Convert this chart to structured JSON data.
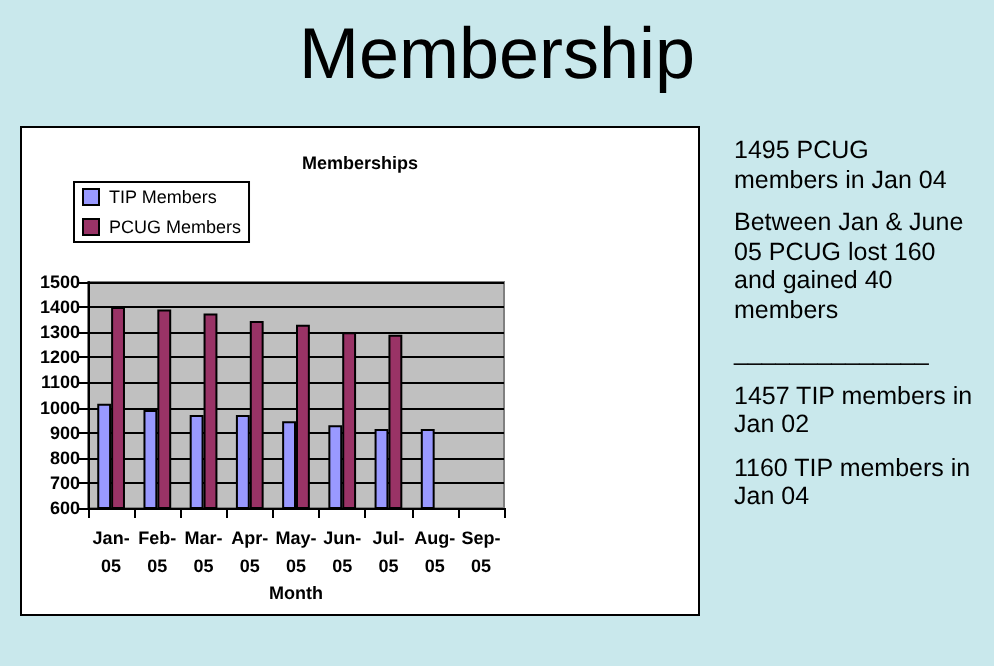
{
  "chart_data": {
    "type": "bar",
    "title": "Membership",
    "subtitle": "Memberships",
    "xlabel": "Month",
    "categories": [
      "Jan-05",
      "Feb-05",
      "Mar-05",
      "Apr-05",
      "May-05",
      "Jun-05",
      "Jul-05",
      "Aug-05",
      "Sep-05"
    ],
    "series": [
      {
        "name": "TIP Members",
        "color": "#9999ff",
        "values": [
          1015,
          990,
          970,
          970,
          945,
          930,
          915,
          915,
          null
        ]
      },
      {
        "name": "PCUG Members",
        "color": "#993366",
        "values": [
          1400,
          1390,
          1375,
          1345,
          1330,
          1300,
          1290,
          null,
          null
        ]
      }
    ],
    "ylim": [
      600,
      1500
    ],
    "yticks": [
      600,
      700,
      800,
      900,
      1000,
      1100,
      1200,
      1300,
      1400,
      1500
    ],
    "grid": "y",
    "legend": "top left",
    "annotations": [
      "1495 PCUG members in Jan 04",
      "Between Jan & June 05 PCUG lost 160 and gained 40 members",
      "______________",
      "1457 TIP members in Jan 02",
      "1160 TIP members in Jan 04"
    ]
  }
}
